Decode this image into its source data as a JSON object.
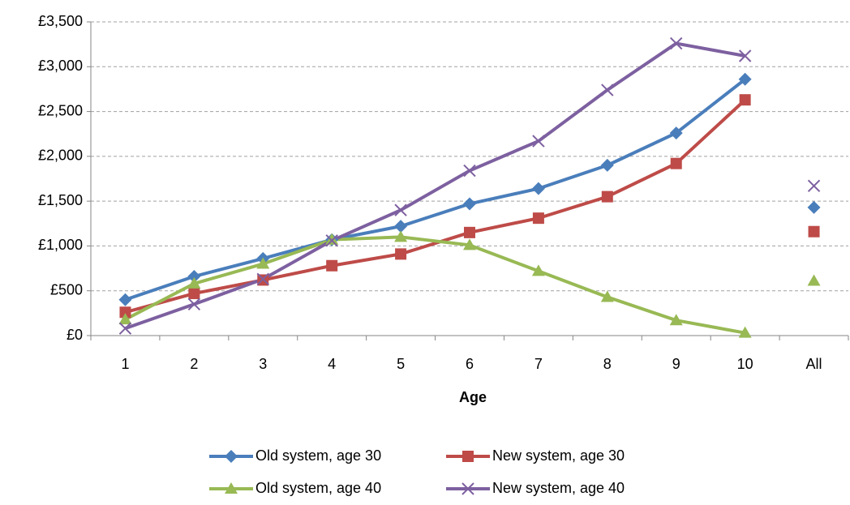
{
  "chart_data": {
    "type": "line",
    "x_label": "Age",
    "categories": [
      "1",
      "2",
      "3",
      "4",
      "5",
      "6",
      "7",
      "8",
      "9",
      "10"
    ],
    "summary_category": "All",
    "ylim": [
      0,
      3500
    ],
    "yticks": [
      {
        "value": 0,
        "label": "£0"
      },
      {
        "value": 500,
        "label": "£500"
      },
      {
        "value": 1000,
        "label": "£1,000"
      },
      {
        "value": 1500,
        "label": "£1,500"
      },
      {
        "value": 2000,
        "label": "£2,000"
      },
      {
        "value": 2500,
        "label": "£2,500"
      },
      {
        "value": 3000,
        "label": "£3,000"
      },
      {
        "value": 3500,
        "label": "£3,500"
      }
    ],
    "grid": true,
    "legend": "bottom",
    "series": [
      {
        "name": "Old system, age 30",
        "color": "#4a7ebb",
        "marker": "diamond",
        "values": [
          400,
          660,
          860,
          1070,
          1220,
          1470,
          1640,
          1900,
          2260,
          2860
        ],
        "summary_value": 1430
      },
      {
        "name": "New system, age 30",
        "color": "#be4b48",
        "marker": "square",
        "values": [
          260,
          470,
          620,
          780,
          910,
          1150,
          1310,
          1550,
          1920,
          2630
        ],
        "summary_value": 1160
      },
      {
        "name": "Old system, age 40",
        "color": "#98b954",
        "marker": "triangle",
        "values": [
          180,
          580,
          800,
          1070,
          1100,
          1010,
          720,
          430,
          170,
          30
        ],
        "summary_value": 610
      },
      {
        "name": "New system, age 40",
        "color": "#7d60a0",
        "marker": "x",
        "values": [
          80,
          350,
          630,
          1060,
          1400,
          1840,
          2170,
          2740,
          3260,
          3120
        ],
        "summary_value": 1670
      }
    ]
  }
}
